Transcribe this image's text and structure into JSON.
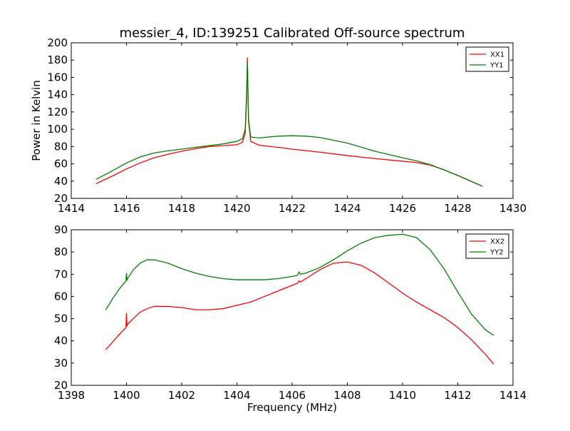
{
  "figure": {
    "title": "messier_4, ID:139251 Calibrated Off-source spectrum"
  },
  "colors": {
    "xx": "#ff0000",
    "yy": "#008000"
  },
  "chart_data": [
    {
      "type": "line",
      "title": "messier_4, ID:139251 Calibrated Off-source spectrum",
      "xlabel": "",
      "ylabel": "Power in Kelvin",
      "xlim": [
        1414,
        1430
      ],
      "ylim": [
        20,
        200
      ],
      "xticks": [
        1414,
        1416,
        1418,
        1420,
        1422,
        1424,
        1426,
        1428,
        1430
      ],
      "yticks": [
        20,
        40,
        60,
        80,
        100,
        120,
        140,
        160,
        180,
        200
      ],
      "grid": false,
      "legend": "top-right",
      "series": [
        {
          "name": "XX1",
          "color": "#ff0000",
          "x": [
            1414.9,
            1415.5,
            1416.0,
            1416.5,
            1417.0,
            1417.5,
            1418.0,
            1418.5,
            1419.0,
            1419.5,
            1420.0,
            1420.2,
            1420.3,
            1420.35,
            1420.38,
            1420.42,
            1420.5,
            1420.8,
            1421.5,
            1422.0,
            1423.0,
            1424.0,
            1425.0,
            1426.0,
            1426.5,
            1427.0,
            1427.5,
            1428.0,
            1428.5,
            1428.9
          ],
          "y": [
            37,
            46,
            54,
            61,
            67,
            71,
            74.5,
            77.5,
            80,
            81,
            82,
            85,
            95,
            135,
            183,
            110,
            86,
            81.5,
            79,
            77,
            73.5,
            69.5,
            66,
            63,
            61.5,
            58.5,
            53,
            46.5,
            39.5,
            34
          ]
        },
        {
          "name": "YY1",
          "color": "#008000",
          "x": [
            1414.9,
            1415.5,
            1416.0,
            1416.5,
            1417.0,
            1417.5,
            1418.0,
            1418.5,
            1419.0,
            1419.5,
            1420.0,
            1420.2,
            1420.3,
            1420.35,
            1420.38,
            1420.42,
            1420.5,
            1420.8,
            1421.5,
            1422.0,
            1422.5,
            1423.0,
            1424.0,
            1425.0,
            1426.0,
            1426.5,
            1427.0,
            1427.5,
            1428.0,
            1428.5,
            1428.9
          ],
          "y": [
            42,
            52,
            61,
            68,
            72.5,
            75,
            77,
            79,
            81,
            83,
            86,
            89,
            100,
            140,
            177,
            112,
            91,
            90,
            92,
            92.5,
            92,
            90.5,
            84,
            74.5,
            67,
            63.5,
            59,
            53,
            46.5,
            39.5,
            34
          ]
        }
      ]
    },
    {
      "type": "line",
      "title": "",
      "xlabel": "Frequency (MHz)",
      "ylabel": "",
      "xlim": [
        1398,
        1414
      ],
      "ylim": [
        20,
        90
      ],
      "xticks": [
        1398,
        1400,
        1402,
        1404,
        1406,
        1408,
        1410,
        1412,
        1414
      ],
      "yticks": [
        20,
        30,
        40,
        50,
        60,
        70,
        80,
        90
      ],
      "grid": false,
      "legend": "top-right",
      "series": [
        {
          "name": "XX2",
          "color": "#ff0000",
          "x": [
            1399.25,
            1399.5,
            1399.75,
            1399.98,
            1400.0,
            1400.02,
            1400.04,
            1400.25,
            1400.5,
            1400.75,
            1401.0,
            1401.5,
            1402.0,
            1402.5,
            1403.0,
            1403.5,
            1404.0,
            1404.5,
            1405.0,
            1405.5,
            1406.0,
            1406.2,
            1406.25,
            1406.3,
            1406.5,
            1407.0,
            1407.5,
            1408.0,
            1408.5,
            1409.0,
            1409.5,
            1410.0,
            1410.5,
            1411.0,
            1411.5,
            1412.0,
            1412.5,
            1413.0,
            1413.3
          ],
          "y": [
            36,
            39.5,
            43,
            46,
            52.5,
            46.5,
            47.5,
            50,
            53,
            54.5,
            55.5,
            55.5,
            55,
            54,
            54,
            54.5,
            56,
            57.5,
            60,
            62.5,
            65,
            66,
            67,
            66.5,
            68,
            72,
            75,
            75.5,
            74,
            70.5,
            66,
            61.5,
            57.5,
            54,
            50.5,
            46,
            40.5,
            34,
            29.5
          ]
        },
        {
          "name": "YY2",
          "color": "#008000",
          "x": [
            1399.25,
            1399.5,
            1399.75,
            1399.98,
            1400.0,
            1400.02,
            1400.04,
            1400.25,
            1400.5,
            1400.75,
            1401.0,
            1401.5,
            1402.0,
            1402.5,
            1403.0,
            1403.5,
            1404.0,
            1404.5,
            1405.0,
            1405.5,
            1406.0,
            1406.2,
            1406.25,
            1406.3,
            1406.5,
            1407.0,
            1407.5,
            1408.0,
            1408.5,
            1409.0,
            1409.5,
            1410.0,
            1410.5,
            1411.0,
            1411.5,
            1412.0,
            1412.5,
            1413.0,
            1413.3
          ],
          "y": [
            54,
            59,
            63.5,
            67,
            70.5,
            67.5,
            68,
            72,
            75,
            76.5,
            76.5,
            75,
            72.5,
            70.5,
            69,
            68,
            67.5,
            67.5,
            67.5,
            68,
            69,
            69.5,
            71,
            70,
            70.5,
            73,
            76.5,
            80.5,
            84,
            86.5,
            87.5,
            88,
            86.5,
            81,
            72.5,
            62,
            52,
            45,
            42.5
          ]
        }
      ]
    }
  ]
}
